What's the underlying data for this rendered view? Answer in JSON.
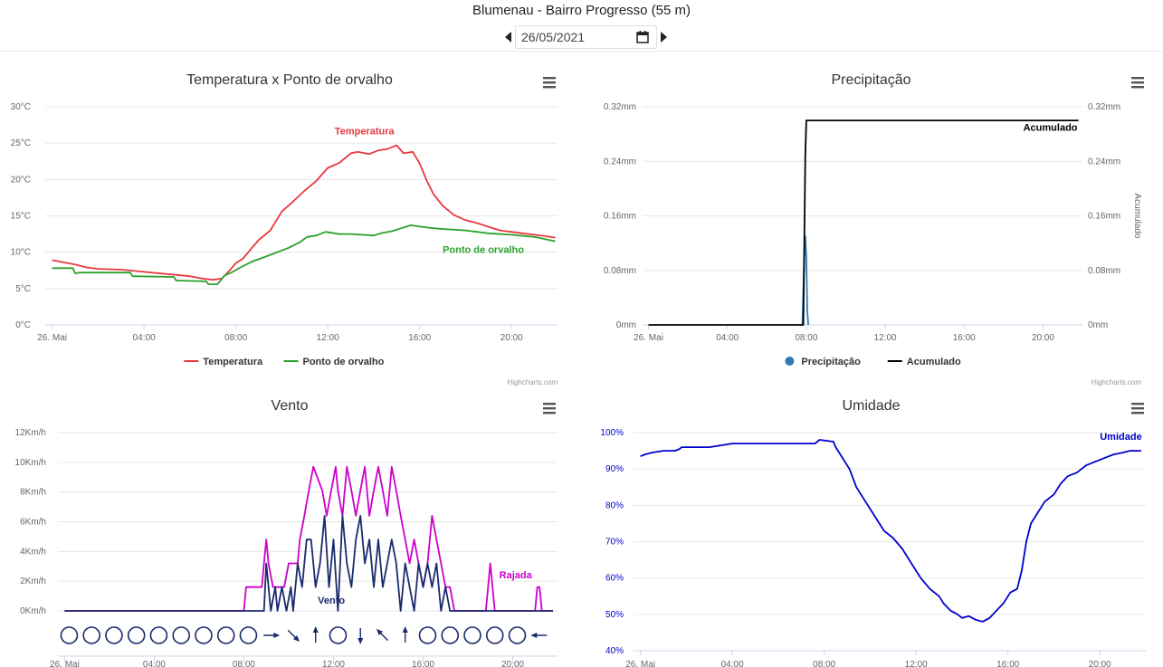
{
  "header": {
    "title": "Blumenau - Bairro Progresso (55 m)",
    "date_value": "26/05/2021"
  },
  "credits": "Highcharts.com",
  "chart_data": [
    {
      "id": "temp",
      "type": "line",
      "title": "Temperatura x Ponto de orvalho",
      "x_unit": "hour",
      "xlim": [
        -0.3,
        22
      ],
      "ylim": [
        0,
        30
      ],
      "y_ticks": [
        {
          "v": 0,
          "label": "0°C"
        },
        {
          "v": 5,
          "label": "5°C"
        },
        {
          "v": 10,
          "label": "10°C"
        },
        {
          "v": 15,
          "label": "15°C"
        },
        {
          "v": 20,
          "label": "20°C"
        },
        {
          "v": 25,
          "label": "25°C"
        },
        {
          "v": 30,
          "label": "30°C"
        }
      ],
      "x_ticks": [
        {
          "v": 0,
          "label": "26. Mai"
        },
        {
          "v": 4,
          "label": "04:00"
        },
        {
          "v": 8,
          "label": "08:00"
        },
        {
          "v": 12,
          "label": "12:00"
        },
        {
          "v": 16,
          "label": "16:00"
        },
        {
          "v": 20,
          "label": "20:00"
        }
      ],
      "grid": true,
      "legend_position": "bottom",
      "series": [
        {
          "name": "Temperatura",
          "color": "#e8393f",
          "label_near": [
            12.3,
            26.2
          ],
          "x": [
            0,
            0.5,
            1,
            1.5,
            2,
            3,
            4,
            5,
            6,
            6.5,
            7,
            7.4,
            7.7,
            8,
            8.3,
            8.7,
            9,
            9.5,
            10,
            10.5,
            11,
            11.5,
            12,
            12.5,
            13,
            13.3,
            13.8,
            14.2,
            14.6,
            15,
            15.3,
            15.7,
            16,
            16.3,
            16.6,
            17,
            17.5,
            18,
            18.5,
            19,
            19.5,
            20,
            20.5,
            21,
            21.5,
            21.9
          ],
          "values": [
            8.9,
            8.6,
            8.3,
            7.9,
            7.7,
            7.6,
            7.3,
            7.0,
            6.7,
            6.4,
            6.2,
            6.4,
            7.4,
            8.5,
            9.1,
            10.6,
            11.7,
            13.0,
            15.6,
            17.0,
            18.5,
            19.8,
            21.6,
            22.3,
            23.6,
            23.8,
            23.5,
            24.0,
            24.2,
            24.7,
            23.6,
            23.8,
            22.2,
            19.9,
            18.0,
            16.4,
            15.1,
            14.4,
            14.0,
            13.5,
            13.0,
            12.8,
            12.6,
            12.4,
            12.2,
            12.0
          ]
        },
        {
          "name": "Ponto de orvalho",
          "color": "#2ca02c",
          "label_near": [
            17.0,
            9.9
          ],
          "x": [
            0,
            0.9,
            1.0,
            1.2,
            1.8,
            3.4,
            3.5,
            5.3,
            5.4,
            6.7,
            6.8,
            7.2,
            7.5,
            7.8,
            8.2,
            8.7,
            9.3,
            9.8,
            10.3,
            10.8,
            11.1,
            11.5,
            11.9,
            12.5,
            13,
            14,
            14.3,
            14.8,
            15.2,
            15.6,
            16.1,
            16.6,
            17,
            18,
            19,
            20,
            21,
            21.9
          ],
          "values": [
            7.8,
            7.8,
            7.1,
            7.2,
            7.2,
            7.2,
            6.7,
            6.6,
            6.1,
            6.0,
            5.6,
            5.6,
            6.8,
            7.2,
            7.9,
            8.7,
            9.4,
            10.0,
            10.6,
            11.4,
            12.1,
            12.3,
            12.8,
            12.5,
            12.5,
            12.3,
            12.6,
            12.9,
            13.3,
            13.7,
            13.5,
            13.3,
            13.2,
            13.0,
            12.6,
            12.4,
            12.1,
            11.5
          ]
        }
      ]
    },
    {
      "id": "precip",
      "type": "line",
      "title": "Precipitação",
      "x_unit": "hour",
      "xlim": [
        -0.3,
        22
      ],
      "ylim": [
        0,
        0.32
      ],
      "y_ticks": [
        {
          "v": 0,
          "label": "0mm"
        },
        {
          "v": 0.08,
          "label": "0.08mm"
        },
        {
          "v": 0.16,
          "label": "0.16mm"
        },
        {
          "v": 0.24,
          "label": "0.24mm"
        },
        {
          "v": 0.32,
          "label": "0.32mm"
        }
      ],
      "y2_label": "Acumulado",
      "x_ticks": [
        {
          "v": 0,
          "label": "26. Mai"
        },
        {
          "v": 4,
          "label": "04:00"
        },
        {
          "v": 8,
          "label": "08:00"
        },
        {
          "v": 12,
          "label": "12:00"
        },
        {
          "v": 16,
          "label": "16:00"
        },
        {
          "v": 20,
          "label": "20:00"
        }
      ],
      "grid": true,
      "legend_position": "bottom",
      "series": [
        {
          "name": "Precipitação",
          "color": "#2b7bb9",
          "marker": "circle",
          "x": [
            7.8,
            7.9,
            7.95,
            8.0,
            8.05,
            8.1
          ],
          "values": [
            0,
            0.1,
            0.13,
            0.1,
            0.02,
            0
          ]
        },
        {
          "name": "Acumulado",
          "color": "#000000",
          "label_near": [
            19.0,
            0.285
          ],
          "x": [
            0,
            7.85,
            7.95,
            8.0,
            21.8
          ],
          "values": [
            0,
            0,
            0.25,
            0.3,
            0.3
          ]
        }
      ]
    },
    {
      "id": "wind",
      "type": "line",
      "title": "Vento",
      "x_unit": "hour",
      "xlim": [
        -0.3,
        22
      ],
      "ylim": [
        0,
        12
      ],
      "y_ticks": [
        {
          "v": 0,
          "label": "0Km/h"
        },
        {
          "v": 2,
          "label": "2Km/h"
        },
        {
          "v": 4,
          "label": "4Km/h"
        },
        {
          "v": 6,
          "label": "6Km/h"
        },
        {
          "v": 8,
          "label": "8Km/h"
        },
        {
          "v": 10,
          "label": "10Km/h"
        },
        {
          "v": 12,
          "label": "12Km/h"
        }
      ],
      "x_ticks": [
        {
          "v": 0,
          "label": "26. Mai"
        },
        {
          "v": 4,
          "label": "04:00"
        },
        {
          "v": 8,
          "label": "08:00"
        },
        {
          "v": 12,
          "label": "12:00"
        },
        {
          "v": 16,
          "label": "16:00"
        },
        {
          "v": 20,
          "label": "20:00"
        }
      ],
      "grid": true,
      "series": [
        {
          "name": "Rajada",
          "color": "#cc00cc",
          "label_near": [
            19.4,
            2.2
          ],
          "x": [
            0,
            8.0,
            8.1,
            8.8,
            8.9,
            9.0,
            9.1,
            9.3,
            9.8,
            10.0,
            10.1,
            10.4,
            10.5,
            10.7,
            10.9,
            11.1,
            11.5,
            11.7,
            11.9,
            12.1,
            12.2,
            12.4,
            12.6,
            12.8,
            13.0,
            13.2,
            13.4,
            13.6,
            13.8,
            14.0,
            14.2,
            14.4,
            14.6,
            14.8,
            15.0,
            15.2,
            15.4,
            15.6,
            15.8,
            16.0,
            16.2,
            16.4,
            16.6,
            16.8,
            17.0,
            17.2,
            17.4,
            18.0,
            18.1,
            18.3,
            18.6,
            18.8,
            18.9,
            19.0,
            19.1,
            19.2,
            19.3,
            19.4,
            19.5,
            19.6,
            20.0,
            20.5,
            21.0,
            21.1,
            21.2,
            21.3,
            21.8
          ],
          "values": [
            0,
            0,
            1.6,
            1.6,
            3.2,
            4.8,
            3.2,
            1.6,
            1.6,
            3.2,
            3.2,
            3.2,
            4.8,
            6.4,
            8.1,
            9.7,
            8.1,
            6.4,
            8.1,
            9.7,
            8.1,
            6.4,
            9.7,
            8.1,
            6.4,
            8.1,
            9.7,
            6.4,
            8.1,
            9.7,
            8.1,
            6.4,
            9.7,
            8.1,
            6.4,
            4.8,
            3.2,
            4.8,
            3.2,
            1.6,
            3.2,
            6.4,
            4.8,
            3.2,
            1.6,
            1.6,
            0,
            0,
            0,
            0,
            0,
            0,
            1.6,
            3.2,
            1.6,
            0,
            0,
            0,
            0,
            0,
            0,
            0,
            0,
            1.6,
            1.6,
            0,
            0
          ]
        },
        {
          "name": "Vento",
          "color": "#1a2a6c",
          "label_near": [
            11.3,
            0.5
          ],
          "x": [
            0,
            8.9,
            9.0,
            9.1,
            9.2,
            9.4,
            9.5,
            9.7,
            9.9,
            10.1,
            10.2,
            10.4,
            10.6,
            10.8,
            11.0,
            11.2,
            11.4,
            11.6,
            11.8,
            12.0,
            12.2,
            12.4,
            12.6,
            12.8,
            13.0,
            13.2,
            13.4,
            13.6,
            13.8,
            14.0,
            14.2,
            14.4,
            14.6,
            14.8,
            15.0,
            15.2,
            15.4,
            15.6,
            15.8,
            16.0,
            16.2,
            16.4,
            16.6,
            16.8,
            17.0,
            17.2,
            21.8
          ],
          "values": [
            0,
            0,
            3.2,
            1.6,
            0,
            1.6,
            0,
            1.6,
            0,
            1.6,
            0,
            3.2,
            1.6,
            4.8,
            4.8,
            1.6,
            3.2,
            6.4,
            1.6,
            4.8,
            0,
            6.4,
            3.2,
            1.6,
            4.8,
            6.4,
            3.2,
            4.8,
            1.6,
            4.8,
            1.6,
            3.2,
            4.8,
            3.2,
            0,
            3.2,
            1.6,
            0,
            3.2,
            1.6,
            3.2,
            1.6,
            3.2,
            0,
            1.6,
            0,
            0
          ]
        }
      ],
      "wind_direction_hours": [
        0,
        1,
        2,
        3,
        4,
        5,
        6,
        7,
        8,
        9,
        10,
        11,
        12,
        13,
        14,
        15,
        16,
        17,
        18,
        19,
        20,
        21
      ],
      "wind_direction_symbols": [
        "calm",
        "calm",
        "calm",
        "calm",
        "calm",
        "calm",
        "calm",
        "calm",
        "calm",
        "W",
        "NW",
        "S",
        "calm",
        "N",
        "SE",
        "S",
        "calm",
        "calm",
        "calm",
        "calm",
        "calm",
        "E"
      ]
    },
    {
      "id": "humid",
      "type": "line",
      "title": "Umidade",
      "x_unit": "hour",
      "xlim": [
        -0.3,
        22
      ],
      "ylim": [
        40,
        100
      ],
      "y_ticks": [
        {
          "v": 40,
          "label": "40%"
        },
        {
          "v": 50,
          "label": "50%"
        },
        {
          "v": 60,
          "label": "60%"
        },
        {
          "v": 70,
          "label": "70%"
        },
        {
          "v": 80,
          "label": "80%"
        },
        {
          "v": 90,
          "label": "90%"
        },
        {
          "v": 100,
          "label": "100%"
        }
      ],
      "x_ticks": [
        {
          "v": 0,
          "label": "26. Mai"
        },
        {
          "v": 4,
          "label": "04:00"
        },
        {
          "v": 8,
          "label": "08:00"
        },
        {
          "v": 12,
          "label": "12:00"
        },
        {
          "v": 16,
          "label": "16:00"
        },
        {
          "v": 20,
          "label": "20:00"
        }
      ],
      "grid": true,
      "series": [
        {
          "name": "Umidade",
          "color": "#0000cc",
          "label_near": [
            20.0,
            98.0
          ],
          "x": [
            0,
            0.2,
            0.5,
            1,
            1.5,
            1.7,
            1.8,
            2,
            3,
            4,
            5,
            6,
            7,
            7.6,
            7.8,
            8.4,
            8.5,
            8.8,
            9.1,
            9.4,
            9.8,
            10.2,
            10.6,
            11.0,
            11.4,
            11.8,
            12.2,
            12.6,
            13.0,
            13.2,
            13.5,
            13.8,
            14.0,
            14.3,
            14.6,
            14.9,
            15.2,
            15.5,
            15.8,
            16.1,
            16.4,
            16.6,
            16.8,
            17.0,
            17.3,
            17.6,
            18.0,
            18.3,
            18.6,
            19.0,
            19.4,
            19.8,
            20.2,
            20.6,
            21.0,
            21.3,
            21.5,
            21.8
          ],
          "values": [
            93.5,
            94,
            94.5,
            95,
            95,
            95.5,
            96,
            96,
            96,
            97,
            97,
            97,
            97,
            97,
            98,
            97.5,
            96,
            93,
            90,
            85,
            81,
            77,
            73,
            71,
            68,
            64,
            60,
            57,
            55,
            53,
            51,
            50,
            49,
            49.5,
            48.5,
            48,
            49,
            51,
            53,
            56,
            57,
            62,
            70,
            75,
            78,
            81,
            83,
            86,
            88,
            89,
            91,
            92,
            93,
            94,
            94.5,
            95,
            95,
            95
          ]
        }
      ]
    }
  ]
}
